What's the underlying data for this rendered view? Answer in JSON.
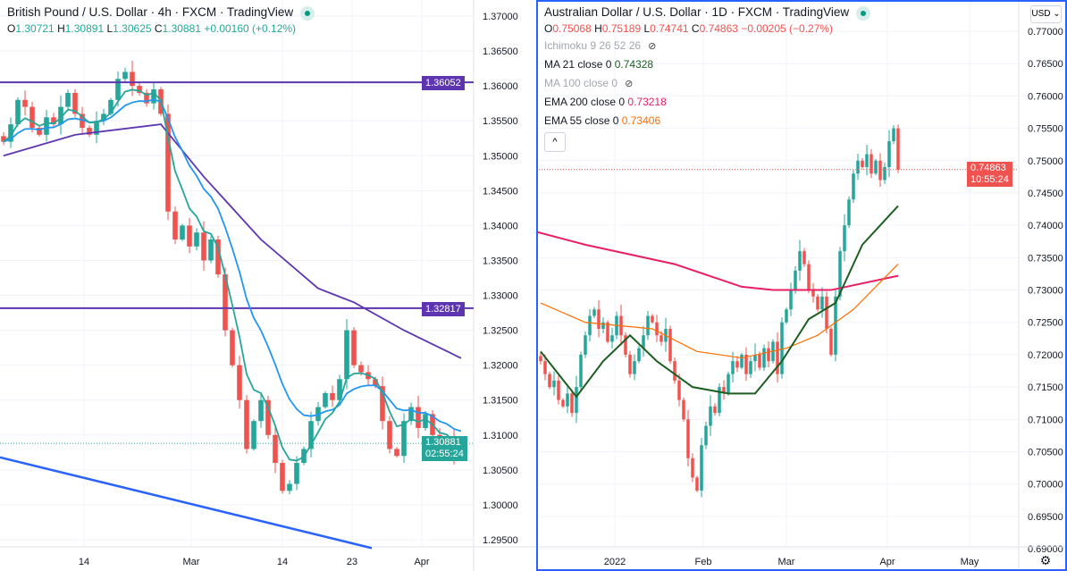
{
  "left_panel": {
    "title": "British Pound / U.S. Dollar · 4h · FXCM · TradingView",
    "ohlc": {
      "o_label": "O",
      "o": "1.30721",
      "h_label": "H",
      "h": "1.30891",
      "l_label": "L",
      "l": "1.30625",
      "c_label": "C",
      "c": "1.30881",
      "change": "+0.00160 (+0.12%)"
    },
    "price_labels": [
      {
        "text": "1.36052",
        "color": "#5e35b1"
      },
      {
        "text": "1.32817",
        "color": "#5e35b1"
      }
    ],
    "last_price": {
      "price": "1.30881",
      "countdown": "02:55:24",
      "color": "#26a69a"
    }
  },
  "right_panel": {
    "title": "Australian Dollar / U.S. Dollar · 1D · FXCM · TradingView",
    "ohlc": {
      "o_label": "O",
      "o": "0.75068",
      "h_label": "H",
      "h": "0.75189",
      "l_label": "L",
      "l": "0.74741",
      "c_label": "C",
      "c": "0.74863",
      "change": "−0.00205 (−0.27%)"
    },
    "indicators": [
      {
        "name": "Ichimoku 9 26 52 26",
        "value": "",
        "hidden": true
      },
      {
        "name": "MA 21 close 0",
        "value": "0.74328",
        "color": "#1b5e20"
      },
      {
        "name": "MA 100 close 0",
        "value": "",
        "hidden": true
      },
      {
        "name": "EMA 200 close 0",
        "value": "0.73218",
        "color": "#e91e63"
      },
      {
        "name": "EMA 55 close 0",
        "value": "0.73406",
        "color": "#ff6d00"
      }
    ],
    "collapse_glyph": "^",
    "currency_button": "USD ⌄",
    "last_price": {
      "price": "0.74863",
      "countdown": "10:55:24",
      "color": "#ef5350"
    },
    "settings_icon": "gear-icon"
  },
  "chart_data": [
    {
      "type": "candlestick",
      "title": "British Pound / U.S. Dollar · 4h · FXCM",
      "ylim": [
        1.295,
        1.37
      ],
      "yticks": [
        "1.37000",
        "1.36500",
        "1.36000",
        "1.35500",
        "1.35000",
        "1.34500",
        "1.34000",
        "1.33500",
        "1.33000",
        "1.32500",
        "1.32000",
        "1.31500",
        "1.31000",
        "1.30500",
        "1.30000",
        "1.29500"
      ],
      "xticks": [
        "14",
        "Mar",
        "14",
        "23",
        "Apr"
      ],
      "close": [
        1.352,
        1.3545,
        1.358,
        1.357,
        1.354,
        1.353,
        1.3555,
        1.3545,
        1.357,
        1.359,
        1.356,
        1.354,
        1.353,
        1.355,
        1.356,
        1.358,
        1.361,
        1.362,
        1.36,
        1.359,
        1.3575,
        1.3595,
        1.356,
        1.342,
        1.338,
        1.34,
        1.337,
        1.339,
        1.335,
        1.338,
        1.333,
        1.325,
        1.32,
        1.315,
        1.308,
        1.312,
        1.315,
        1.31,
        1.306,
        1.302,
        1.303,
        1.306,
        1.308,
        1.312,
        1.314,
        1.316,
        1.315,
        1.318,
        1.325,
        1.32,
        1.319,
        1.318,
        1.317,
        1.312,
        1.308,
        1.307,
        1.312,
        1.314,
        1.311,
        1.313,
        1.31,
        1.308,
        1.3095,
        1.307,
        1.3088
      ],
      "horizontal_levels": [
        1.36052,
        1.32817
      ],
      "trendline": [
        [
          -0.5,
          1.3068
        ],
        [
          51.5,
          1.2938
        ]
      ],
      "slow_ma": [
        [
          0,
          1.35
        ],
        [
          10,
          1.353
        ],
        [
          22,
          1.3545
        ],
        [
          28,
          1.347
        ],
        [
          36,
          1.338
        ],
        [
          44,
          1.331
        ],
        [
          49,
          1.329
        ],
        [
          56,
          1.325
        ],
        [
          64,
          1.321
        ]
      ],
      "fast_ema_period": 5,
      "mid_ema_period": 12,
      "last": 1.30881
    },
    {
      "type": "candlestick",
      "title": "Australian Dollar / U.S. Dollar · 1D · FXCM",
      "ylim": [
        0.69,
        0.77
      ],
      "yticks": [
        "0.77000",
        "0.76500",
        "0.76000",
        "0.75500",
        "0.75000",
        "0.74500",
        "0.74000",
        "0.73500",
        "0.73000",
        "0.72500",
        "0.72000",
        "0.71500",
        "0.71000",
        "0.70500",
        "0.70000",
        "0.69500",
        "0.69000"
      ],
      "xticks": [
        "2022",
        "Feb",
        "Mar",
        "Apr",
        "May"
      ],
      "close": [
        0.719,
        0.717,
        0.715,
        0.716,
        0.713,
        0.712,
        0.714,
        0.711,
        0.715,
        0.72,
        0.723,
        0.726,
        0.727,
        0.724,
        0.725,
        0.722,
        0.723,
        0.726,
        0.723,
        0.72,
        0.717,
        0.719,
        0.721,
        0.723,
        0.726,
        0.725,
        0.723,
        0.722,
        0.724,
        0.719,
        0.716,
        0.713,
        0.71,
        0.704,
        0.701,
        0.699,
        0.706,
        0.709,
        0.712,
        0.711,
        0.715,
        0.714,
        0.717,
        0.719,
        0.718,
        0.72,
        0.717,
        0.719,
        0.72,
        0.718,
        0.721,
        0.719,
        0.722,
        0.717,
        0.725,
        0.727,
        0.73,
        0.733,
        0.736,
        0.734,
        0.73,
        0.729,
        0.727,
        0.729,
        0.724,
        0.72,
        0.729,
        0.736,
        0.74,
        0.744,
        0.748,
        0.75,
        0.749,
        0.751,
        0.748,
        0.75,
        0.747,
        0.749,
        0.753,
        0.755,
        0.7486
      ],
      "ma21": [
        [
          0,
          0.7205
        ],
        [
          8,
          0.7135
        ],
        [
          14,
          0.719
        ],
        [
          20,
          0.723
        ],
        [
          26,
          0.719
        ],
        [
          34,
          0.715
        ],
        [
          42,
          0.714
        ],
        [
          48,
          0.714
        ],
        [
          54,
          0.719
        ],
        [
          60,
          0.7255
        ],
        [
          66,
          0.728
        ],
        [
          72,
          0.737
        ],
        [
          80,
          0.743
        ]
      ],
      "ema200": [
        [
          -1,
          0.739
        ],
        [
          10,
          0.737
        ],
        [
          30,
          0.734
        ],
        [
          45,
          0.7305
        ],
        [
          52,
          0.73
        ],
        [
          65,
          0.73
        ],
        [
          80,
          0.7322
        ]
      ],
      "ema55": [
        [
          0,
          0.728
        ],
        [
          10,
          0.725
        ],
        [
          25,
          0.724
        ],
        [
          35,
          0.7205
        ],
        [
          45,
          0.7195
        ],
        [
          55,
          0.721
        ],
        [
          62,
          0.723
        ],
        [
          70,
          0.727
        ],
        [
          80,
          0.734
        ]
      ],
      "last": 0.74863
    }
  ]
}
